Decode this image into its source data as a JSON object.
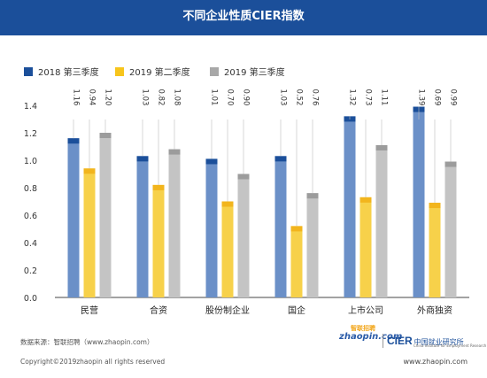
{
  "title": "不同企业性质CIER指数",
  "chart_data": {
    "type": "bar",
    "categories": [
      "民营",
      "合资",
      "股份制企业",
      "国企",
      "上市公司",
      "外商独资"
    ],
    "series": [
      {
        "name": "2018 第三季度",
        "values": [
          1.16,
          1.03,
          1.01,
          1.03,
          1.32,
          1.39
        ],
        "color": "#6b90c8",
        "cap": "#1b4f9a"
      },
      {
        "name": "2019 第二季度",
        "values": [
          0.94,
          0.82,
          0.7,
          0.52,
          0.73,
          0.69
        ],
        "color": "#f7d14a",
        "cap": "#f2b51d"
      },
      {
        "name": "2019 第三季度",
        "values": [
          1.2,
          1.08,
          0.9,
          0.76,
          1.11,
          0.99
        ],
        "color": "#c4c4c4",
        "cap": "#9c9c9c"
      }
    ],
    "value_labels": [
      [
        "1.16",
        "0.94",
        "1.20"
      ],
      [
        "1.03",
        "0.82",
        "1.08"
      ],
      [
        "1.01",
        "0.70",
        "0.90"
      ],
      [
        "1.03",
        "0.52",
        "0.76"
      ],
      [
        "1.32",
        "0.73",
        "1.11"
      ],
      [
        "1.39",
        "0.69",
        "0.99"
      ]
    ],
    "yticks": [
      "0.0",
      "0.2",
      "0.4",
      "0.6",
      "0.8",
      "1.0",
      "1.2",
      "1.4"
    ],
    "ylim": [
      0,
      1.4
    ],
    "legend_position": "top-left"
  },
  "footer": {
    "source": "数据来源：智联招聘（www.zhaopin.com）",
    "copyright": "Copyright©2019zhaopin all rights reserved",
    "url": "www.zhaopin.com",
    "logo_zhaopin": "zhaopin.com",
    "logo_zhaopin_cn": "智联招聘",
    "logo_cier": "CIER",
    "logo_cier_cn": "中国就业研究所",
    "logo_cier_en": "China Institute for Employment Research"
  }
}
